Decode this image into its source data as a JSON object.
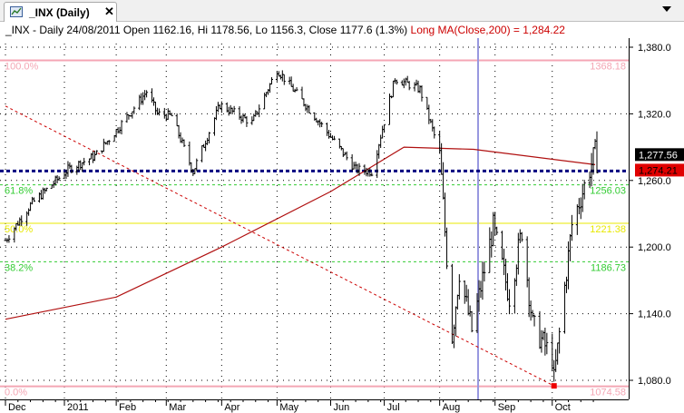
{
  "tab": {
    "title": "_INX (Daily)",
    "close_label": "✕",
    "icon": "chart-icon"
  },
  "dropdown": {
    "icon": "chevron-down-icon"
  },
  "info": {
    "main": "_INX - Daily 24/08/2011 Open 1162.16, Hi 1178.56, Lo 1156.3, Close 1177.6 (1.3%)",
    "ma": "Long MA(Close,200) = 1,284.22"
  },
  "colors": {
    "fib_100": "#f4a6b4",
    "fib_618": "#33cc33",
    "fib_50": "#e8e800",
    "fib_382": "#33cc33",
    "fib_0": "#f4a6b4",
    "ma": "#b01010",
    "support": "#000080",
    "trend": "#cc0000",
    "cursor": "#9090e0"
  },
  "chart_data": {
    "type": "line",
    "title": "_INX (Daily)",
    "y_ticks": [
      "1,380.0",
      "1,320.0",
      "1,260.0",
      "1,200.0",
      "1,140.0",
      "1,080.0"
    ],
    "ylim": [
      1070,
      1398
    ],
    "x_labels": [
      "Dec",
      "2011",
      "Feb",
      "Mar",
      "Apr",
      "May",
      "Jun",
      "Jul",
      "Aug",
      "Sep",
      "Oct"
    ],
    "fib_levels": [
      {
        "label": "100.0%",
        "value": 1368.18,
        "value_label": "1368.18"
      },
      {
        "label": "61.8%",
        "value": 1256.03,
        "value_label": "1256.03"
      },
      {
        "label": "50.0%",
        "value": 1221.38,
        "value_label": "1221.38"
      },
      {
        "label": "38.2%",
        "value": 1186.73,
        "value_label": "1186.73"
      },
      {
        "label": "0.0%",
        "value": 1074.58,
        "value_label": "1074.58"
      }
    ],
    "last_close": {
      "value": 1277.56,
      "label": "1,277.56"
    },
    "ma_value": {
      "value": 1274.21,
      "label": "1,274.21"
    },
    "support_level": 1268.5,
    "price_series": [
      {
        "x": "2010-12-01",
        "close": 1206
      },
      {
        "x": "2010-12-15",
        "close": 1238
      },
      {
        "x": "2011-01-05",
        "close": 1270
      },
      {
        "x": "2011-01-20",
        "close": 1282
      },
      {
        "x": "2011-02-01",
        "close": 1305
      },
      {
        "x": "2011-02-18",
        "close": 1340
      },
      {
        "x": "2011-02-24",
        "close": 1320
      },
      {
        "x": "2011-03-04",
        "close": 1318
      },
      {
        "x": "2011-03-16",
        "close": 1268
      },
      {
        "x": "2011-03-31",
        "close": 1328
      },
      {
        "x": "2011-04-18",
        "close": 1312
      },
      {
        "x": "2011-05-02",
        "close": 1360
      },
      {
        "x": "2011-05-23",
        "close": 1318
      },
      {
        "x": "2011-06-15",
        "close": 1270
      },
      {
        "x": "2011-06-24",
        "close": 1268
      },
      {
        "x": "2011-07-07",
        "close": 1352
      },
      {
        "x": "2011-07-21",
        "close": 1342
      },
      {
        "x": "2011-08-01",
        "close": 1285
      },
      {
        "x": "2011-08-08",
        "close": 1120
      },
      {
        "x": "2011-08-12",
        "close": 1178
      },
      {
        "x": "2011-08-19",
        "close": 1125
      },
      {
        "x": "2011-08-31",
        "close": 1218
      },
      {
        "x": "2011-09-09",
        "close": 1155
      },
      {
        "x": "2011-09-16",
        "close": 1215
      },
      {
        "x": "2011-09-22",
        "close": 1130
      },
      {
        "x": "2011-10-03",
        "close": 1100
      },
      {
        "x": "2011-10-04",
        "close": 1080
      },
      {
        "x": "2011-10-14",
        "close": 1220
      },
      {
        "x": "2011-10-27",
        "close": 1285
      },
      {
        "x": "2011-10-28",
        "close": 1277.56
      }
    ],
    "long_ma_200": [
      {
        "x": "2010-12-01",
        "value": 1135
      },
      {
        "x": "2011-02-01",
        "value": 1155
      },
      {
        "x": "2011-04-01",
        "value": 1200
      },
      {
        "x": "2011-06-01",
        "value": 1250
      },
      {
        "x": "2011-07-12",
        "value": 1290
      },
      {
        "x": "2011-08-20",
        "value": 1288
      },
      {
        "x": "2011-10-27",
        "value": 1274.21
      }
    ]
  }
}
